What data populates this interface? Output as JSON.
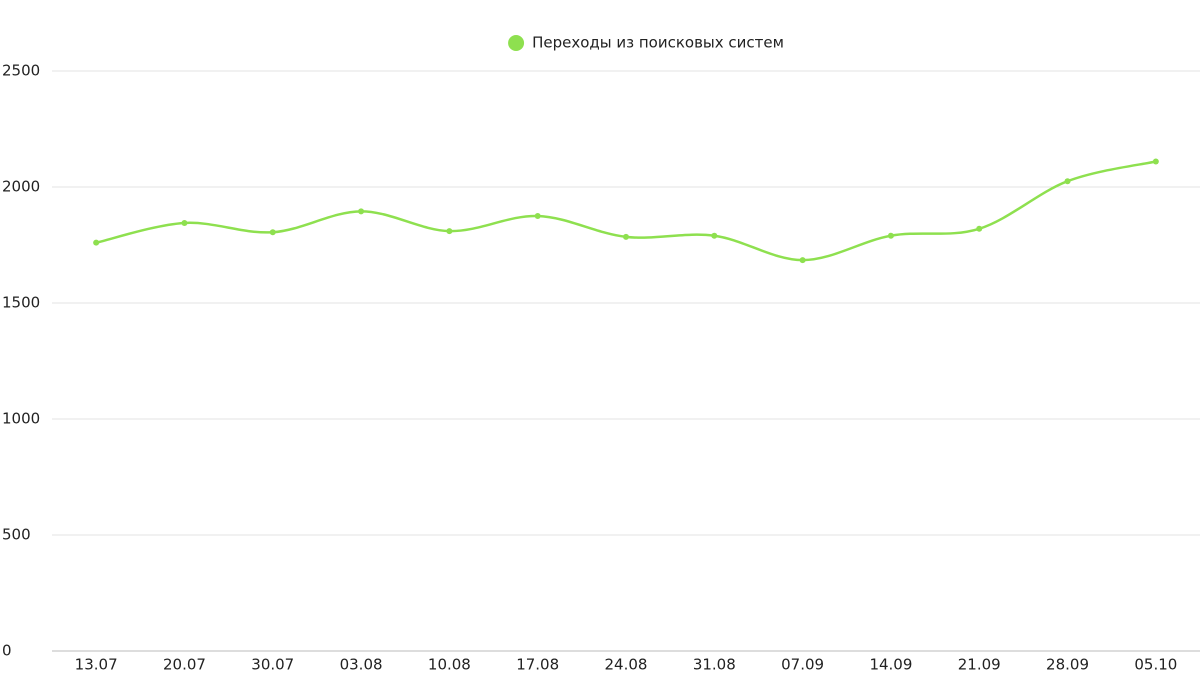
{
  "chart_data": {
    "type": "line",
    "categories": [
      "13.07",
      "20.07",
      "30.07",
      "03.08",
      "10.08",
      "17.08",
      "24.08",
      "31.08",
      "07.09",
      "14.09",
      "21.09",
      "28.09",
      "05.10"
    ],
    "series": [
      {
        "name": "Переходы из поисковых систем",
        "color": "#8ee04f",
        "values": [
          1760,
          1845,
          1805,
          1895,
          1810,
          1875,
          1785,
          1790,
          1685,
          1790,
          1820,
          2025,
          2110
        ]
      }
    ],
    "ylim": [
      0,
      2500
    ],
    "yticks": [
      0,
      500,
      1000,
      1500,
      2000,
      2500
    ],
    "grid": true,
    "smooth": true,
    "legend": "top"
  }
}
